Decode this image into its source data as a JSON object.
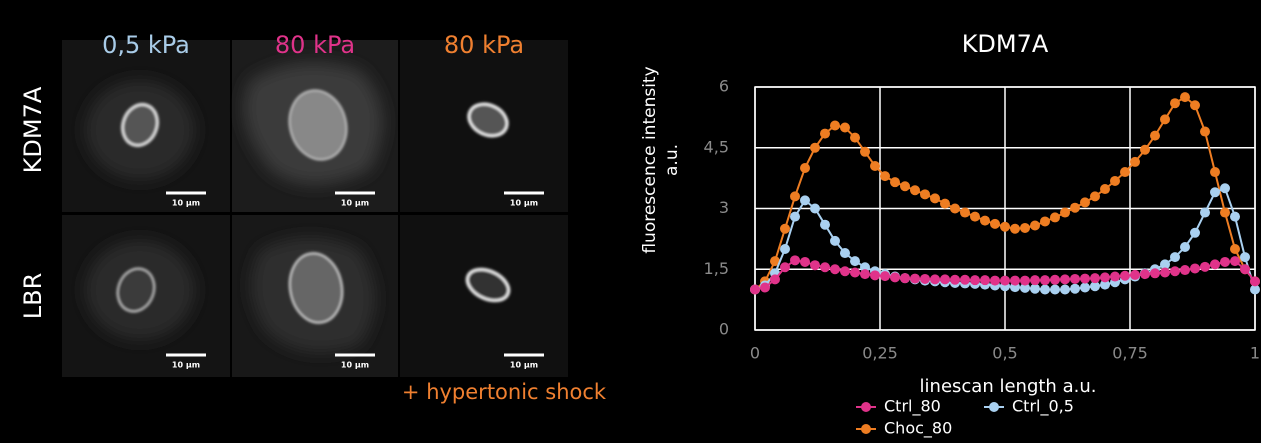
{
  "panel": {
    "columns": [
      {
        "label": "0,5 kPa",
        "color": "#a9cce8"
      },
      {
        "label": "80 kPa",
        "color": "#e0338a"
      },
      {
        "label": "80 kPa",
        "color": "#f08030"
      }
    ],
    "rows": [
      "KDM7A",
      "LBR"
    ],
    "scale_bar_label": "10 µm",
    "footnote": "+ hypertonic shock"
  },
  "chart_data": {
    "type": "line",
    "title": "KDM7A",
    "xlabel": "linescan length a.u.",
    "ylabel": [
      "fluorescence intensity",
      "a.u."
    ],
    "xlim": [
      0,
      1
    ],
    "ylim": [
      0,
      6
    ],
    "xticks": [
      0,
      {
        "value": 0.25,
        "label": "0,25"
      },
      {
        "value": 0.5,
        "label": "0,5"
      },
      {
        "value": 0.75,
        "label": "0,75"
      },
      1
    ],
    "yticks": [
      0,
      {
        "value": 1.5,
        "label": "1,5"
      },
      3,
      {
        "value": 4.5,
        "label": "4,5"
      },
      6
    ],
    "grid": true,
    "legend": "bottom",
    "x": [
      0,
      0.02,
      0.04,
      0.06,
      0.08,
      0.1,
      0.12,
      0.14,
      0.16,
      0.18,
      0.2,
      0.22,
      0.24,
      0.26,
      0.28,
      0.3,
      0.32,
      0.34,
      0.36,
      0.38,
      0.4,
      0.42,
      0.44,
      0.46,
      0.48,
      0.5,
      0.52,
      0.54,
      0.56,
      0.58,
      0.6,
      0.62,
      0.64,
      0.66,
      0.68,
      0.7,
      0.72,
      0.74,
      0.76,
      0.78,
      0.8,
      0.82,
      0.84,
      0.86,
      0.88,
      0.9,
      0.92,
      0.94,
      0.96,
      0.98,
      1
    ],
    "series": [
      {
        "name": "Ctrl_80",
        "color": "#e0338a",
        "values": [
          1.0,
          1.05,
          1.25,
          1.55,
          1.72,
          1.68,
          1.6,
          1.55,
          1.5,
          1.45,
          1.42,
          1.38,
          1.35,
          1.33,
          1.3,
          1.28,
          1.27,
          1.26,
          1.25,
          1.25,
          1.24,
          1.24,
          1.23,
          1.23,
          1.22,
          1.22,
          1.22,
          1.22,
          1.23,
          1.23,
          1.24,
          1.25,
          1.26,
          1.27,
          1.28,
          1.3,
          1.32,
          1.34,
          1.36,
          1.38,
          1.4,
          1.42,
          1.45,
          1.48,
          1.52,
          1.56,
          1.62,
          1.68,
          1.7,
          1.5,
          1.2
        ]
      },
      {
        "name": "Ctrl_0,5",
        "color": "#a9d0f0",
        "values": [
          1.0,
          1.1,
          1.4,
          2.0,
          2.8,
          3.2,
          3.0,
          2.6,
          2.2,
          1.9,
          1.7,
          1.55,
          1.45,
          1.38,
          1.32,
          1.28,
          1.25,
          1.22,
          1.2,
          1.18,
          1.16,
          1.15,
          1.14,
          1.12,
          1.1,
          1.08,
          1.06,
          1.04,
          1.02,
          1.0,
          1.0,
          1.0,
          1.02,
          1.05,
          1.08,
          1.12,
          1.18,
          1.25,
          1.32,
          1.4,
          1.5,
          1.62,
          1.8,
          2.05,
          2.4,
          2.9,
          3.4,
          3.5,
          2.8,
          1.8,
          1.0
        ]
      },
      {
        "name": "Choc_80",
        "color": "#ee7d22",
        "values": [
          1.0,
          1.2,
          1.7,
          2.5,
          3.3,
          4.0,
          4.5,
          4.85,
          5.05,
          5.0,
          4.75,
          4.4,
          4.05,
          3.8,
          3.65,
          3.55,
          3.45,
          3.35,
          3.25,
          3.12,
          3.0,
          2.9,
          2.8,
          2.7,
          2.62,
          2.55,
          2.5,
          2.52,
          2.58,
          2.68,
          2.78,
          2.9,
          3.02,
          3.15,
          3.3,
          3.48,
          3.68,
          3.9,
          4.15,
          4.45,
          4.8,
          5.2,
          5.6,
          5.75,
          5.55,
          4.9,
          3.9,
          2.9,
          2.0,
          1.5,
          1.2
        ]
      }
    ]
  }
}
